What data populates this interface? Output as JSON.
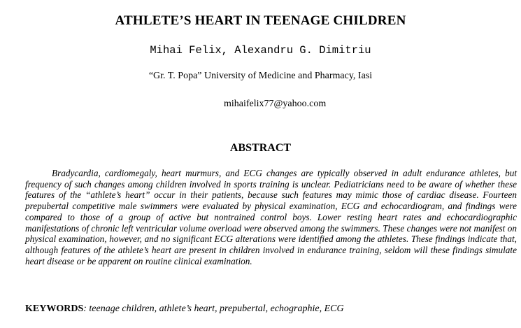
{
  "paper": {
    "title": "ATHLETE’S HEART IN TEENAGE CHILDREN",
    "authors": "Mihai Felix, Alexandru G. Dimitriu",
    "affiliation": "“Gr. T. Popa” University of Medicine and Pharmacy, Iasi",
    "email": "mihaifelix77@yahoo.com",
    "abstract_heading": "ABSTRACT",
    "abstract_text": "Bradycardia, cardiomegaly, heart murmurs, and ECG changes are typically observed in adult endurance athletes, but frequency of such changes among children involved in sports training is unclear. Pediatricians need to be aware of whether these features of the “athlete’s heart” occur in their patients, because such features may mimic those of cardiac disease. Fourteen prepubertal competitive male swimmers were evaluated by physical examination, ECG and echocardiogram, and findings were compared to those of a group of active but nontrained control boys. Lower resting heart rates and echocardiographic manifestations of chronic left ventricular volume overload were observed among the swimmers. These changes were not manifest on physical examination, however, and no significant ECG alterations were identified among the athletes. These findings indicate that, although features of the athlete’s heart are present in children involved in endurance training, seldom will these findings simulate heart disease or be apparent on routine clinical examination.",
    "keywords_label": "KEYWORDS",
    "keywords_text": ": teenage children, athlete’s heart, prepubertal, echographie, ECG"
  }
}
